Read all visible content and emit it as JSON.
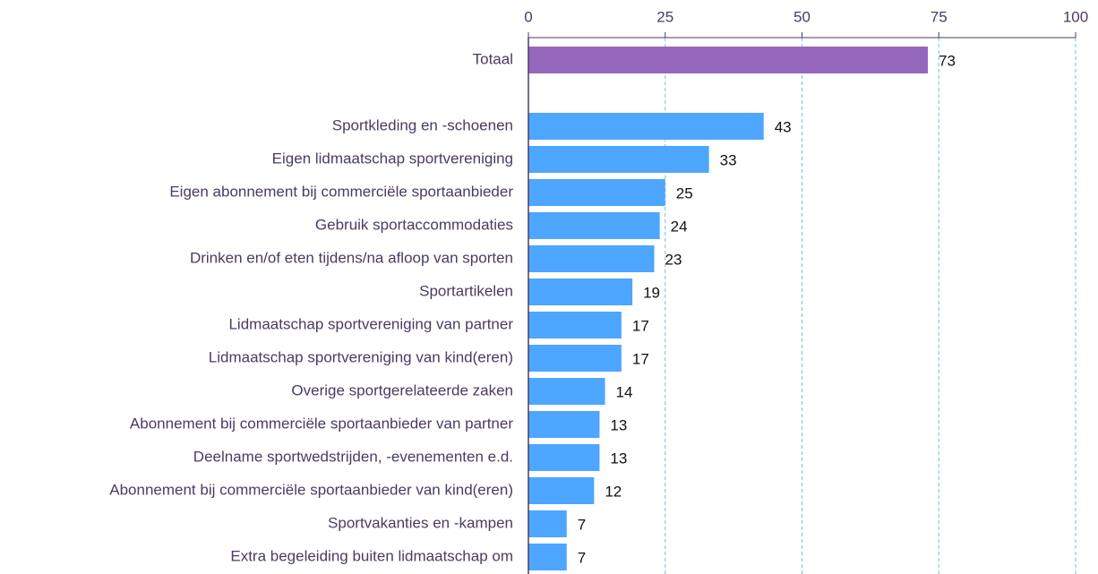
{
  "chart_data": {
    "type": "bar",
    "orientation": "horizontal",
    "categories": [
      "Totaal",
      null,
      "Sportkleding en -schoenen",
      "Eigen lidmaatschap sportvereniging",
      "Eigen abonnement bij commerciële sportaanbieder",
      "Gebruik sportaccommodaties",
      "Drinken en/of eten tijdens/na afloop van sporten",
      "Sportartikelen",
      "Lidmaatschap sportvereniging van partner",
      "Lidmaatschap sportvereniging van kind(eren)",
      "Overige sportgerelateerde zaken",
      "Abonnement bij commerciële sportaanbieder van partner",
      "Deelname sportwedstrijden, -evenementen e.d.",
      "Abonnement bij commerciële sportaanbieder van kind(eren)",
      "Sportvakanties en -kampen",
      "Extra begeleiding buiten lidmaatschap om"
    ],
    "values": [
      73,
      null,
      43,
      33,
      25,
      24,
      23,
      19,
      17,
      17,
      14,
      13,
      13,
      12,
      7,
      7
    ],
    "colors": [
      "#9467bd",
      null,
      "#4da6ff",
      "#4da6ff",
      "#4da6ff",
      "#4da6ff",
      "#4da6ff",
      "#4da6ff",
      "#4da6ff",
      "#4da6ff",
      "#4da6ff",
      "#4da6ff",
      "#4da6ff",
      "#4da6ff",
      "#4da6ff",
      "#4da6ff"
    ],
    "xlim": [
      0,
      100
    ],
    "xticks": [
      0,
      25,
      50,
      75,
      100
    ],
    "grid": true
  }
}
